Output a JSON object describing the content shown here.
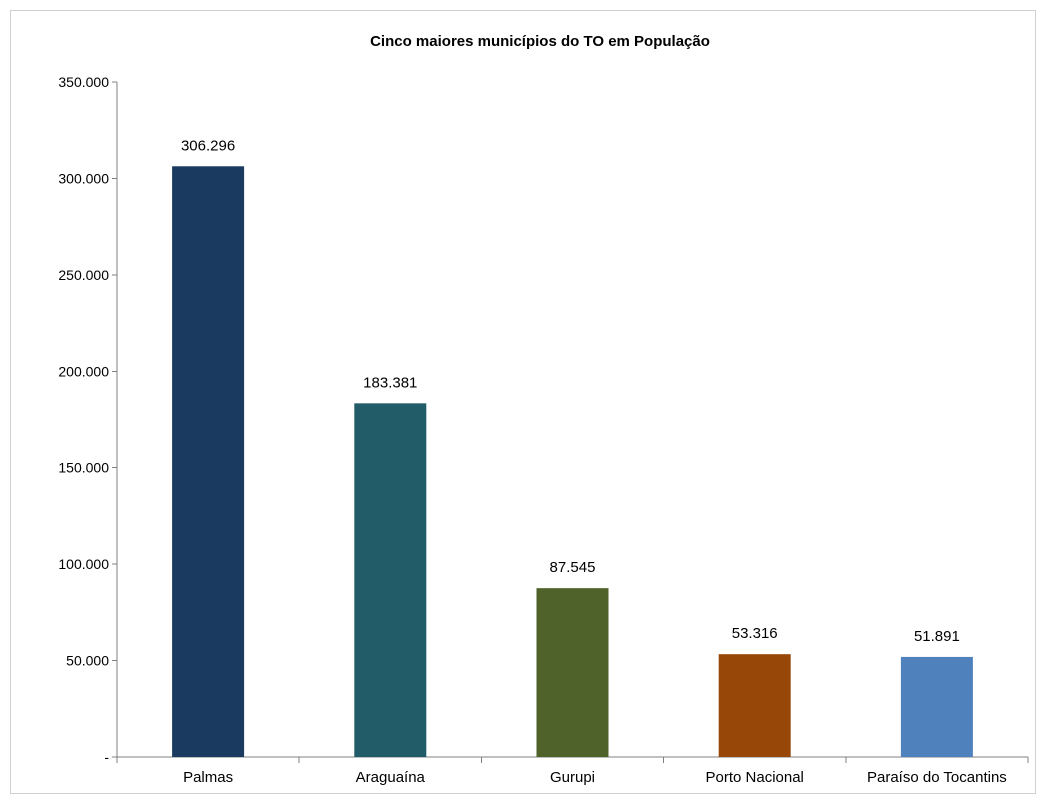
{
  "chart_data": {
    "type": "bar",
    "title": "Cinco maiores municípios do TO em População",
    "categories": [
      "Palmas",
      "Araguaína",
      "Gurupi",
      "Porto Nacional",
      "Paraíso do Tocantins"
    ],
    "values": [
      306296,
      183381,
      87545,
      53316,
      51891
    ],
    "value_labels": [
      "306.296",
      "183.381",
      "87.545",
      "53.316",
      "51.891"
    ],
    "colors": [
      "#1b3a5f",
      "#225c68",
      "#4e6229",
      "#974707",
      "#4f81bd"
    ],
    "ylim": [
      0,
      350000
    ],
    "yticks": [
      0,
      50000,
      100000,
      150000,
      200000,
      250000,
      300000,
      350000
    ],
    "ytick_labels": [
      "-",
      "50.000",
      "100.000",
      "150.000",
      "200.000",
      "250.000",
      "300.000",
      "350.000"
    ],
    "xlabel": "",
    "ylabel": "",
    "grid": false,
    "legend": false
  }
}
